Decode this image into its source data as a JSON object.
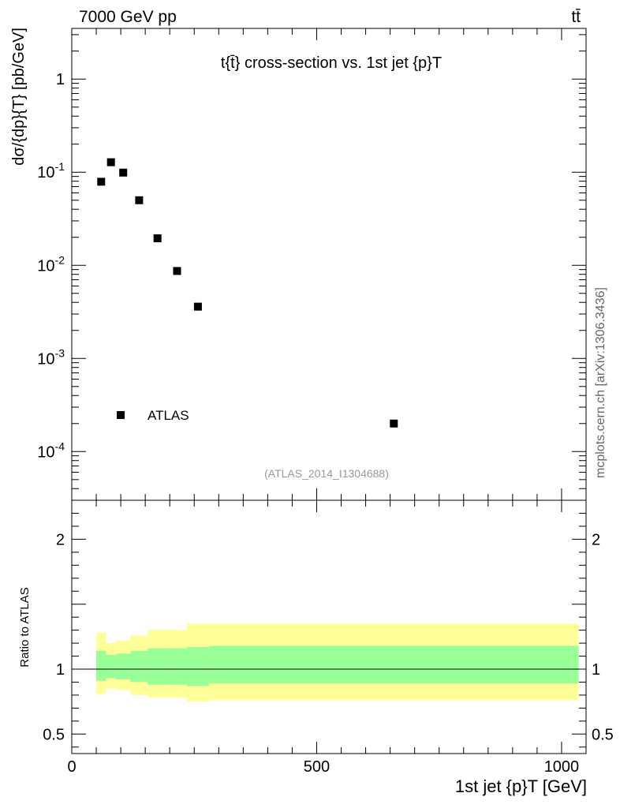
{
  "header": {
    "left": "7000 GeV pp",
    "right": "tt̄"
  },
  "side_label": "mcplots.cern.ch [arXiv:1306.3436]",
  "chart_data": [
    {
      "type": "scatter",
      "title": "t{t̄} cross-section vs. 1st jet {p}T",
      "analysis_label": "(ATLAS_2014_I1304688)",
      "ylabel": "dσ/{dp}{T} [pb/GeV]",
      "yscale": "log",
      "xlim": [
        0,
        1050
      ],
      "ylim": [
        3e-05,
        3.5
      ],
      "ytick_labels": [
        "10^-4",
        "10^-3",
        "10^-2",
        "10^-1",
        "1"
      ],
      "legend": {
        "label": "ATLAS",
        "placement": "bottom-left"
      },
      "series": [
        {
          "name": "ATLAS",
          "x": [
            60,
            80,
            105,
            137.5,
            175,
            215,
            257.5,
            657.5
          ],
          "y": [
            0.079,
            0.128,
            0.099,
            0.05,
            0.0195,
            0.0087,
            0.0036,
            0.0002
          ]
        }
      ]
    },
    {
      "type": "area",
      "ylabel": "Ratio to ATLAS",
      "xlabel": "1st jet {p}T [GeV]",
      "xlim": [
        0,
        1050
      ],
      "ylim": [
        0.35,
        2.3
      ],
      "xticks": [
        0,
        500,
        1000
      ],
      "yticks": [
        0.5,
        1,
        2
      ],
      "reference_line": 1,
      "bins": [
        [
          50,
          70
        ],
        [
          70,
          90
        ],
        [
          90,
          120
        ],
        [
          120,
          155
        ],
        [
          155,
          195
        ],
        [
          195,
          235
        ],
        [
          235,
          280
        ],
        [
          280,
          1035
        ]
      ],
      "band_inner": {
        "color": "#99ff99",
        "low": [
          0.91,
          0.93,
          0.92,
          0.9,
          0.88,
          0.88,
          0.87,
          0.89
        ],
        "high": [
          1.14,
          1.11,
          1.12,
          1.14,
          1.16,
          1.16,
          1.17,
          1.18
        ]
      },
      "band_outer": {
        "color": "#ffff99",
        "low": [
          0.81,
          0.85,
          0.84,
          0.8,
          0.78,
          0.78,
          0.75,
          0.76
        ],
        "high": [
          1.28,
          1.2,
          1.22,
          1.26,
          1.3,
          1.3,
          1.35,
          1.35
        ]
      }
    }
  ]
}
